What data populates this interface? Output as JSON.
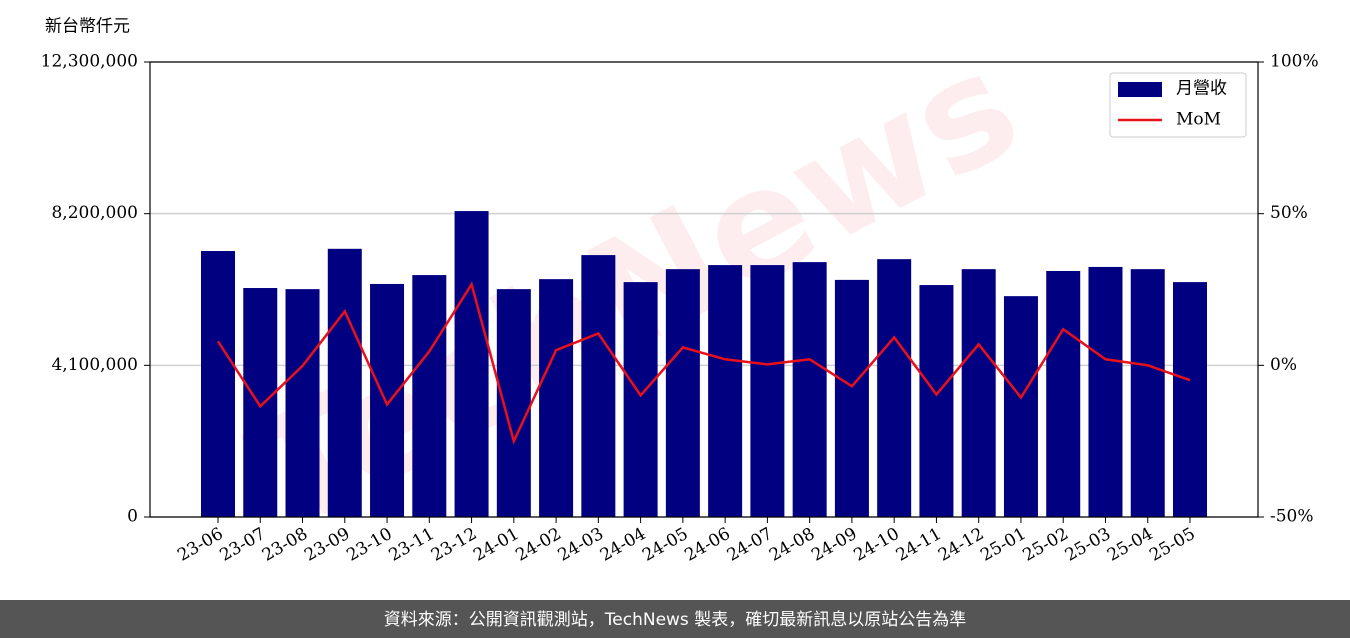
{
  "chart_data": {
    "type": "bar_line",
    "y_label": "新台幣仟元",
    "watermark": "TechNews",
    "footer": "資料來源：公開資訊觀測站，TechNews 製表，確切最新訊息以原站公告為準",
    "categories": [
      "23-06",
      "23-07",
      "23-08",
      "23-09",
      "23-10",
      "23-11",
      "23-12",
      "24-01",
      "24-02",
      "24-03",
      "24-04",
      "24-05",
      "24-06",
      "24-07",
      "24-08",
      "24-09",
      "24-10",
      "24-11",
      "24-12",
      "25-01",
      "25-02",
      "25-03",
      "25-04",
      "25-05"
    ],
    "series": [
      {
        "name": "月營收",
        "color": "#000080",
        "type": "bar",
        "values": [
          7190000,
          6190000,
          6160000,
          7250000,
          6300000,
          6540000,
          8270000,
          6160000,
          6430000,
          7080000,
          6350000,
          6700000,
          6810000,
          6810000,
          6890000,
          6410000,
          6970000,
          6270000,
          6700000,
          5970000,
          6650000,
          6760000,
          6700000,
          6350000
        ]
      },
      {
        "name": "MoM",
        "color": "#e8101a",
        "type": "line",
        "axis": "y2",
        "values": [
          7.9,
          -13.5,
          -0.2,
          17.8,
          -12.9,
          4.6,
          26.7,
          -25,
          5,
          10.5,
          -9.9,
          5.9,
          2,
          0.3,
          2,
          -6.9,
          9.2,
          -9.6,
          6.9,
          -10.6,
          11.9,
          2,
          0,
          -4.9
        ]
      }
    ],
    "ylim": [
      0,
      12300000
    ],
    "yticks": [
      {
        "value": 0,
        "label": "0"
      },
      {
        "value": 4100000,
        "label": "4,100,000"
      },
      {
        "value": 8200000,
        "label": "8,200,000"
      },
      {
        "value": 12300000,
        "label": "12,300,000"
      }
    ],
    "y2lim": [
      -50,
      100
    ],
    "y2ticks": [
      {
        "value": -50,
        "label": "-50%"
      },
      {
        "value": 0,
        "label": "0%"
      },
      {
        "value": 50,
        "label": "50%"
      },
      {
        "value": 100,
        "label": "100%"
      }
    ],
    "grid": true,
    "legend": "upper right"
  }
}
